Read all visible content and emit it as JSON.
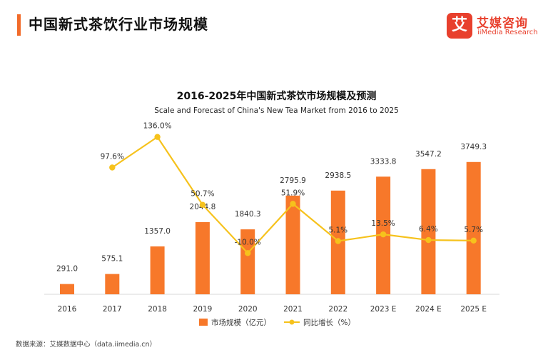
{
  "header": {
    "title": "中国新式茶饮行业市场规模"
  },
  "logo": {
    "mark": "艾",
    "name_cn": "艾媒咨询",
    "name_en": "iiMedia Research"
  },
  "footer": {
    "source": "数据来源：艾媒数据中心（data.iimedia.cn）"
  },
  "colors": {
    "accent": "#f26b2a",
    "bar": "#f7782a",
    "line": "#f6c21c",
    "brand": "#e8402d"
  },
  "chart_data": {
    "type": "bar",
    "title": "2016-2025年中国新式茶饮市场规模及预测",
    "subtitle": "Scale and Forecast of China's New Tea Market from 2016 to 2025",
    "categories": [
      "2016",
      "2017",
      "2018",
      "2019",
      "2020",
      "2021",
      "2022",
      "2023 E",
      "2024 E",
      "2025 E"
    ],
    "series": [
      {
        "name": "市场规模（亿元）",
        "type": "bar",
        "values": [
          291.0,
          575.1,
          1357.0,
          2044.8,
          1840.3,
          2795.9,
          2938.5,
          3333.8,
          3547.2,
          3749.3
        ],
        "labels": [
          "291.0",
          "575.1",
          "1357.0",
          "2044.8",
          "1840.3",
          "2795.9",
          "2938.5",
          "3333.8",
          "3547.2",
          "3749.3"
        ]
      },
      {
        "name": "同比增长（%）",
        "type": "line",
        "values": [
          null,
          97.6,
          136.0,
          50.7,
          -10.0,
          51.9,
          5.1,
          13.5,
          6.4,
          5.7
        ],
        "labels": [
          "",
          "97.6%",
          "136.0%",
          "50.7%",
          "-10.0%",
          "51.9%",
          "5.1%",
          "13.5%",
          "6.4%",
          "5.7%"
        ]
      }
    ],
    "bar_ylim": [
      0,
      5000
    ],
    "line_ylim": [
      -60,
      160
    ],
    "legend": [
      "市场规模（亿元）",
      "同比增长（%）"
    ],
    "legend_position": "bottom"
  }
}
